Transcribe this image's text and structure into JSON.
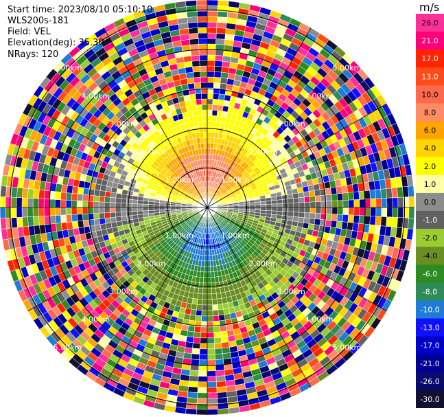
{
  "header": {
    "start_time": "Start time: 2023/08/10 05:10:10",
    "instrument": "WLS200s-181",
    "field": "Field: VEL",
    "elevation": "Elevation(deg): 35.30",
    "nrays": "NRays: 120"
  },
  "colorbar": {
    "unit": "m/s",
    "levels": [
      {
        "label": "26.0",
        "color": "#ff2f9a"
      },
      {
        "label": "21.0",
        "color": "#ff007a"
      },
      {
        "label": "17.0",
        "color": "#ff2400"
      },
      {
        "label": "13.0",
        "color": "#ff4a1a"
      },
      {
        "label": "10.0",
        "color": "#ff6a4d"
      },
      {
        "label": "8.0",
        "color": "#ff8c66"
      },
      {
        "label": "6.0",
        "color": "#ffa500"
      },
      {
        "label": "4.0",
        "color": "#ffd400"
      },
      {
        "label": "2.0",
        "color": "#ffff00"
      },
      {
        "label": "1.0",
        "color": "#ffffa6"
      },
      {
        "label": "0.0",
        "color": "#8c8c8c"
      },
      {
        "label": "-1.0",
        "color": "#616161"
      },
      {
        "label": "-2.0",
        "color": "#9acd32"
      },
      {
        "label": "-4.0",
        "color": "#6b8e23"
      },
      {
        "label": "-6.0",
        "color": "#2e8b22"
      },
      {
        "label": "-8.0",
        "color": "#2e8b57"
      },
      {
        "label": "-10.0",
        "color": "#1e7bd6"
      },
      {
        "label": "-13.0",
        "color": "#1010ff"
      },
      {
        "label": "-17.0",
        "color": "#0000c8"
      },
      {
        "label": "-21.0",
        "color": "#000096"
      },
      {
        "label": "-26.0",
        "color": "#0a0a6e"
      },
      {
        "label": "-30.0",
        "color": "#101030"
      }
    ]
  },
  "chart_data": {
    "type": "heatmap",
    "plot_type": "PPI",
    "field": "VEL",
    "nrays": 120,
    "elevation_deg": 35.3,
    "max_range_km": 5.25,
    "range_ring_labels": [
      "1.00km",
      "2.00km",
      "3.00km",
      "4.00km",
      "5.00km"
    ],
    "range_rings_km": [
      1,
      2,
      3,
      4,
      5
    ],
    "ring_label_bearings_deg": [
      -45,
      45,
      135,
      -135
    ]
  }
}
